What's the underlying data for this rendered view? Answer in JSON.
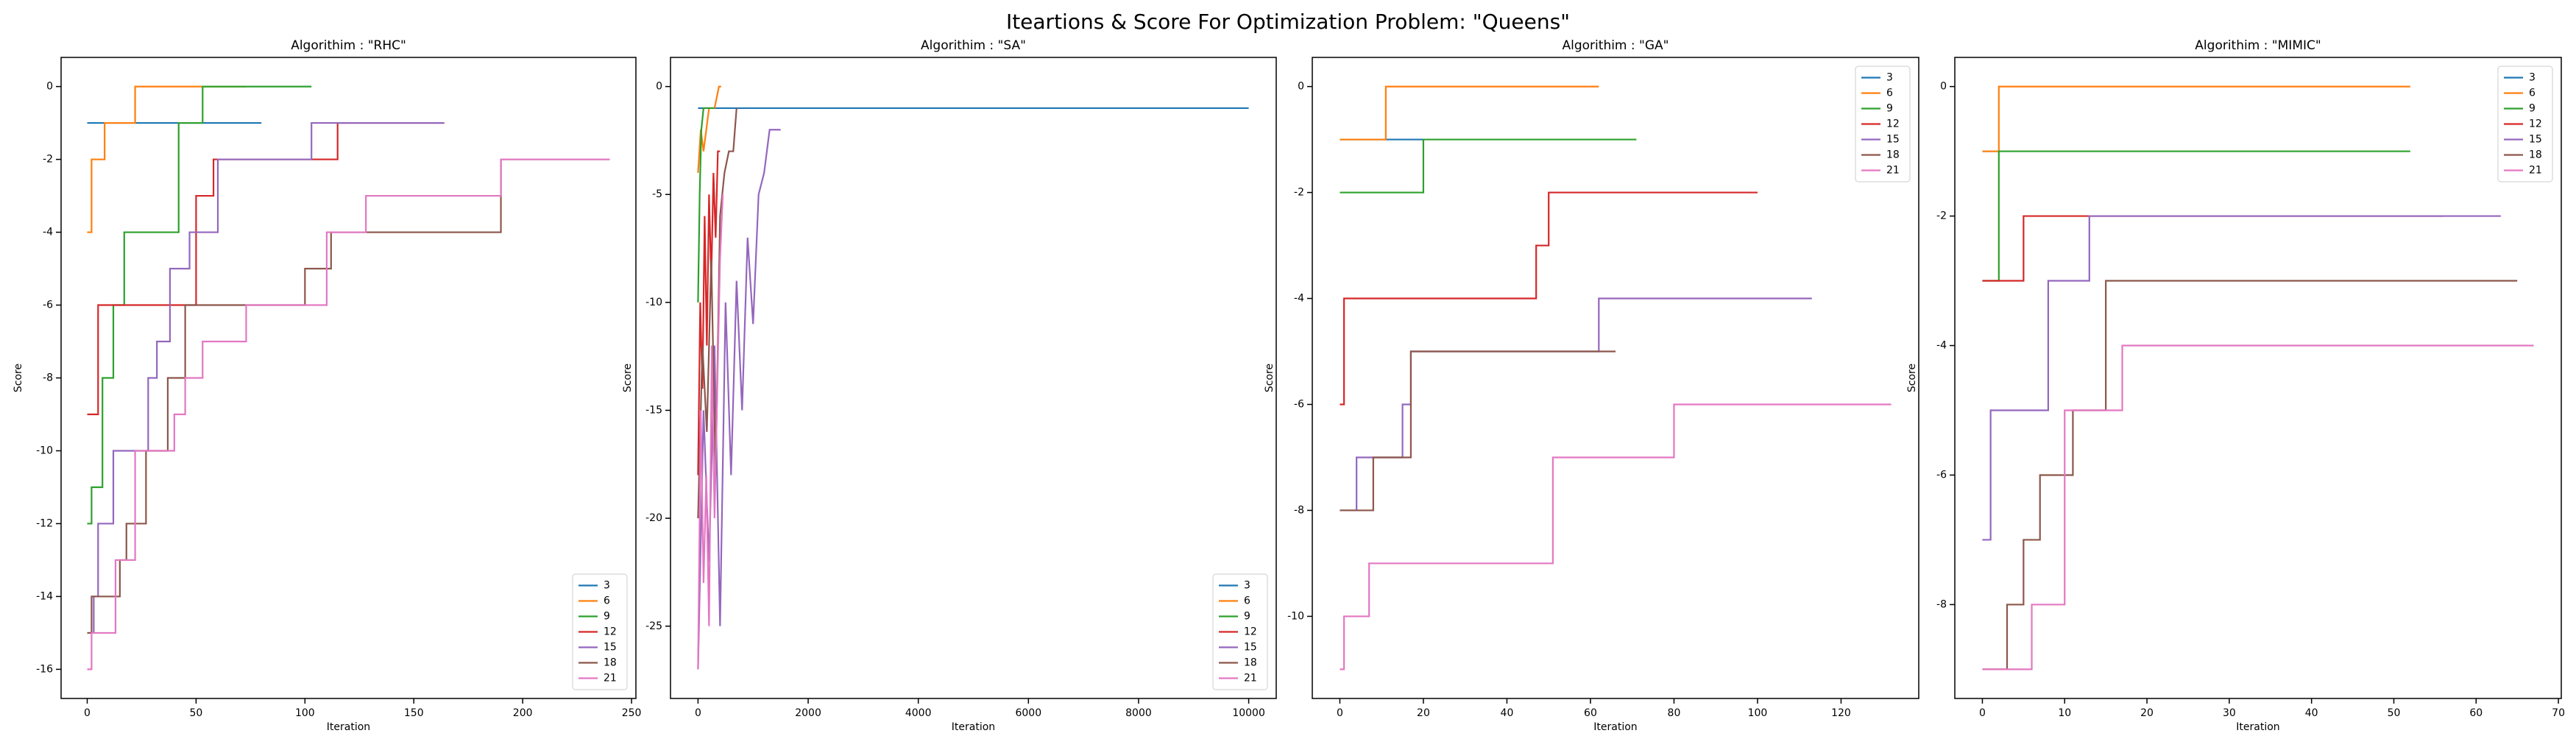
{
  "title": "Iteartions & Score For Optimization Problem: \"Queens\"",
  "chart_data": [
    {
      "type": "line",
      "drawstyle": "steps-post",
      "title": "Algorithim : \"RHC\"",
      "xlabel": "Iteration",
      "ylabel": "Score",
      "xlim": [
        -12,
        252
      ],
      "ylim": [
        -16.8,
        0.8
      ],
      "xticks": [
        0,
        50,
        100,
        150,
        200,
        250
      ],
      "yticks": [
        -16,
        -14,
        -12,
        -10,
        -8,
        -6,
        -4,
        -2,
        0
      ],
      "legend": "lower right",
      "series": [
        {
          "name": "3",
          "color": "#1f77b4",
          "x": [
            0,
            80
          ],
          "values": [
            -1,
            -1
          ]
        },
        {
          "name": "6",
          "color": "#ff7f0e",
          "x": [
            0,
            2,
            8,
            22,
            73
          ],
          "values": [
            -4,
            -2,
            -1,
            0,
            0
          ]
        },
        {
          "name": "9",
          "color": "#2ca02c",
          "x": [
            0,
            2,
            7,
            12,
            17,
            42,
            53,
            103
          ],
          "values": [
            -12,
            -11,
            -8,
            -6,
            -4,
            -1,
            0,
            0
          ]
        },
        {
          "name": "12",
          "color": "#d62728",
          "x": [
            0,
            5,
            50,
            58,
            115,
            164
          ],
          "values": [
            -9,
            -6,
            -3,
            -2,
            -1,
            -1
          ]
        },
        {
          "name": "15",
          "color": "#9467bd",
          "x": [
            0,
            3,
            5,
            12,
            28,
            32,
            38,
            47,
            60,
            103,
            164
          ],
          "values": [
            -15,
            -14,
            -12,
            -10,
            -8,
            -7,
            -5,
            -4,
            -2,
            -1,
            -1
          ]
        },
        {
          "name": "18",
          "color": "#8c564b",
          "x": [
            0,
            2,
            15,
            18,
            27,
            37,
            45,
            100,
            112,
            190,
            240
          ],
          "values": [
            -15,
            -14,
            -13,
            -12,
            -10,
            -8,
            -6,
            -5,
            -4,
            -2,
            -2
          ]
        },
        {
          "name": "21",
          "color": "#e377c2",
          "x": [
            0,
            2,
            13,
            22,
            40,
            45,
            53,
            73,
            110,
            128,
            190,
            240
          ],
          "values": [
            -16,
            -15,
            -13,
            -10,
            -9,
            -8,
            -7,
            -6,
            -4,
            -3,
            -2,
            -2
          ]
        }
      ]
    },
    {
      "type": "line",
      "drawstyle": "default",
      "title": "Algorithim : \"SA\"",
      "xlabel": "Iteration",
      "ylabel": "Score",
      "xlim": [
        -500,
        10500
      ],
      "ylim": [
        -28.35,
        1.35
      ],
      "xticks": [
        0,
        2000,
        4000,
        6000,
        8000,
        10000
      ],
      "yticks": [
        -25,
        -20,
        -15,
        -10,
        -5,
        0
      ],
      "legend": "lower right",
      "series": [
        {
          "name": "3",
          "color": "#1f77b4",
          "x": [
            0,
            10000
          ],
          "values": [
            -1,
            -1
          ]
        },
        {
          "name": "6",
          "color": "#ff7f0e",
          "x": [
            0,
            50,
            100,
            200,
            300,
            380,
            420
          ],
          "values": [
            -4,
            -2,
            -3,
            -1,
            -1,
            0,
            0
          ]
        },
        {
          "name": "9",
          "color": "#2ca02c",
          "x": [
            0,
            30,
            60,
            100,
            200,
            300
          ],
          "values": [
            -10,
            -5,
            -2,
            -1,
            -1,
            -1
          ]
        },
        {
          "name": "12",
          "color": "#d62728",
          "x": [
            0,
            40,
            80,
            120,
            160,
            200,
            240,
            280,
            320,
            360,
            400
          ],
          "values": [
            -18,
            -10,
            -14,
            -6,
            -12,
            -5,
            -9,
            -4,
            -7,
            -3,
            -3
          ]
        },
        {
          "name": "15",
          "color": "#9467bd",
          "x": [
            0,
            100,
            200,
            300,
            400,
            500,
            600,
            700,
            800,
            900,
            1000,
            1100,
            1200,
            1300,
            1500
          ],
          "values": [
            -27,
            -15,
            -22,
            -12,
            -25,
            -10,
            -18,
            -9,
            -15,
            -7,
            -11,
            -5,
            -4,
            -2,
            -2
          ]
        },
        {
          "name": "18",
          "color": "#8c564b",
          "x": [
            0,
            80,
            160,
            240,
            320,
            400,
            480,
            560,
            640,
            700
          ],
          "values": [
            -20,
            -12,
            -16,
            -8,
            -18,
            -6,
            -4,
            -3,
            -3,
            -1
          ]
        },
        {
          "name": "21",
          "color": "#e377c2",
          "x": [
            0,
            50,
            100,
            150,
            200,
            250,
            300,
            350,
            400,
            450
          ],
          "values": [
            -27,
            -15,
            -23,
            -18,
            -25,
            -12,
            -20,
            -14,
            -8,
            -5
          ]
        }
      ]
    },
    {
      "type": "line",
      "drawstyle": "steps-post",
      "title": "Algorithim : \"GA\"",
      "xlabel": "Iteration",
      "ylabel": "Score",
      "xlim": [
        -6.6,
        138.6
      ],
      "ylim": [
        -11.55,
        0.55
      ],
      "xticks": [
        0,
        20,
        40,
        60,
        80,
        100,
        120
      ],
      "yticks": [
        -10,
        -8,
        -6,
        -4,
        -2,
        0
      ],
      "legend": "upper right",
      "series": [
        {
          "name": "3",
          "color": "#1f77b4",
          "x": [
            0,
            20
          ],
          "values": [
            -1,
            -1
          ]
        },
        {
          "name": "6",
          "color": "#ff7f0e",
          "x": [
            0,
            11,
            62
          ],
          "values": [
            -1,
            0,
            0
          ]
        },
        {
          "name": "9",
          "color": "#2ca02c",
          "x": [
            0,
            20,
            71
          ],
          "values": [
            -2,
            -1,
            -1
          ]
        },
        {
          "name": "12",
          "color": "#d62728",
          "x": [
            0,
            1,
            47,
            50,
            100
          ],
          "values": [
            -6,
            -4,
            -3,
            -2,
            -2
          ]
        },
        {
          "name": "15",
          "color": "#9467bd",
          "x": [
            0,
            4,
            15,
            17,
            62,
            113
          ],
          "values": [
            -8,
            -7,
            -6,
            -5,
            -4,
            -4
          ]
        },
        {
          "name": "18",
          "color": "#8c564b",
          "x": [
            0,
            8,
            17,
            66
          ],
          "values": [
            -8,
            -7,
            -5,
            -5
          ]
        },
        {
          "name": "21",
          "color": "#e377c2",
          "x": [
            0,
            1,
            7,
            51,
            80,
            132
          ],
          "values": [
            -11,
            -10,
            -9,
            -7,
            -6,
            -6
          ]
        }
      ]
    },
    {
      "type": "line",
      "drawstyle": "steps-post",
      "title": "Algorithim : \"MIMIC\"",
      "xlabel": "Iteration",
      "ylabel": "Score",
      "xlim": [
        -3.35,
        70.35
      ],
      "ylim": [
        -9.45,
        0.45
      ],
      "xticks": [
        0,
        10,
        20,
        30,
        40,
        50,
        60,
        70
      ],
      "yticks": [
        -8,
        -6,
        -4,
        -2,
        0
      ],
      "legend": "upper right",
      "series": [
        {
          "name": "3",
          "color": "#1f77b4",
          "x": [
            0,
            2
          ],
          "values": [
            -1,
            -1
          ]
        },
        {
          "name": "6",
          "color": "#ff7f0e",
          "x": [
            0,
            2,
            52
          ],
          "values": [
            -1,
            0,
            0
          ]
        },
        {
          "name": "9",
          "color": "#2ca02c",
          "x": [
            0,
            2,
            52
          ],
          "values": [
            -3,
            -1,
            -1
          ]
        },
        {
          "name": "12",
          "color": "#d62728",
          "x": [
            0,
            5,
            56
          ],
          "values": [
            -3,
            -2,
            -2
          ]
        },
        {
          "name": "15",
          "color": "#9467bd",
          "x": [
            0,
            1,
            8,
            13,
            63
          ],
          "values": [
            -7,
            -5,
            -3,
            -2,
            -2
          ]
        },
        {
          "name": "18",
          "color": "#8c564b",
          "x": [
            0,
            3,
            5,
            7,
            11,
            15,
            65
          ],
          "values": [
            -9,
            -8,
            -7,
            -6,
            -5,
            -3,
            -3
          ]
        },
        {
          "name": "21",
          "color": "#e377c2",
          "x": [
            0,
            6,
            10,
            17,
            67
          ],
          "values": [
            -9,
            -8,
            -5,
            -4,
            -4
          ]
        }
      ]
    }
  ]
}
